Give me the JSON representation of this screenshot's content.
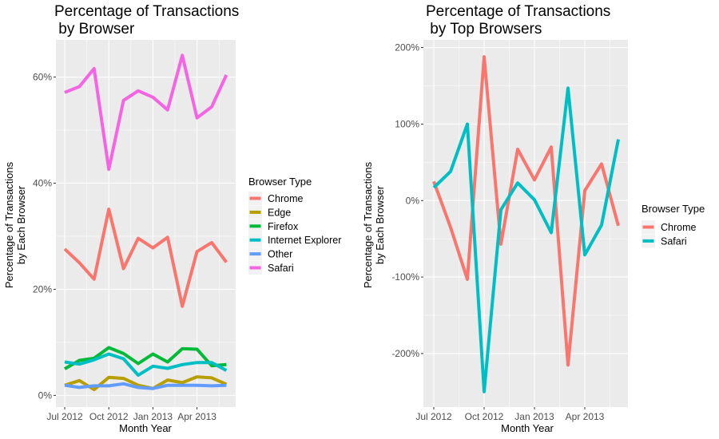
{
  "chart_data": [
    {
      "type": "line",
      "title_lines": [
        "Percentage of Transactions",
        " by Browser"
      ],
      "xlabel": "Month Year",
      "ylabel_lines": [
        "Percentage of Transactions",
        "by Each Browser"
      ],
      "x": [
        "2012-07",
        "2012-08",
        "2012-09",
        "2012-10",
        "2012-11",
        "2012-12",
        "2013-01",
        "2013-02",
        "2013-03",
        "2013-04",
        "2013-05",
        "2013-06"
      ],
      "x_ticks": [
        {
          "date": "2012-07",
          "label": "Jul 2012"
        },
        {
          "date": "2012-10",
          "label": "Oct 2012"
        },
        {
          "date": "2013-01",
          "label": "Jan 2013"
        },
        {
          "date": "2013-04",
          "label": "Apr 2013"
        }
      ],
      "y_ticks": [
        {
          "value": 0,
          "label": "0%"
        },
        {
          "value": 20,
          "label": "20%"
        },
        {
          "value": 40,
          "label": "40%"
        },
        {
          "value": 60,
          "label": "60%"
        }
      ],
      "ylim": [
        -2.2,
        67
      ],
      "grid": true,
      "legend": {
        "title": "Browser Type",
        "placement": "right"
      },
      "series": [
        {
          "name": "Chrome",
          "color": "#F8766D",
          "values": [
            27.6,
            25.0,
            21.9,
            35.1,
            23.9,
            29.6,
            27.8,
            29.8,
            16.8,
            27.1,
            28.8,
            25.1
          ]
        },
        {
          "name": "Edge",
          "color": "#B79F00",
          "values": [
            1.9,
            2.8,
            1.1,
            3.4,
            3.2,
            1.9,
            1.3,
            2.9,
            2.4,
            3.5,
            3.3,
            2.1
          ]
        },
        {
          "name": "Firefox",
          "color": "#00BA38",
          "values": [
            5.0,
            6.6,
            7.0,
            9.0,
            7.9,
            6.0,
            7.8,
            6.3,
            8.8,
            8.7,
            5.6,
            5.8
          ]
        },
        {
          "name": "Internet Explorer",
          "color": "#00BFC4",
          "values": [
            6.3,
            5.9,
            6.7,
            7.8,
            6.9,
            3.8,
            5.5,
            5.1,
            5.8,
            6.2,
            6.2,
            4.7
          ]
        },
        {
          "name": "Other",
          "color": "#619CFF",
          "values": [
            1.9,
            1.5,
            1.8,
            1.8,
            2.2,
            1.5,
            1.3,
            1.9,
            1.9,
            1.9,
            1.8,
            1.9
          ]
        },
        {
          "name": "Safari",
          "color": "#F564E3",
          "values": [
            57.1,
            58.2,
            61.6,
            42.6,
            55.6,
            57.4,
            56.2,
            53.8,
            64.1,
            52.3,
            54.4,
            60.4
          ]
        }
      ]
    },
    {
      "type": "line",
      "title_lines": [
        "Percentage of Transactions",
        " by Top Browsers"
      ],
      "xlabel": "Month Year",
      "ylabel_lines": [
        "Percentage of Transactions",
        "by Each Browser"
      ],
      "x": [
        "2012-07",
        "2012-08",
        "2012-09",
        "2012-10",
        "2012-11",
        "2012-12",
        "2013-01",
        "2013-02",
        "2013-03",
        "2013-04",
        "2013-05",
        "2013-06"
      ],
      "x_ticks": [
        {
          "date": "2012-07",
          "label": "Jul 2012"
        },
        {
          "date": "2012-10",
          "label": "Oct 2012"
        },
        {
          "date": "2013-01",
          "label": "Jan 2013"
        },
        {
          "date": "2013-04",
          "label": "Apr 2013"
        }
      ],
      "y_ticks": [
        {
          "value": -200,
          "label": "-200%"
        },
        {
          "value": -100,
          "label": "-100%"
        },
        {
          "value": 0,
          "label": "0%"
        },
        {
          "value": 100,
          "label": "100%"
        },
        {
          "value": 200,
          "label": "200%"
        }
      ],
      "ylim": [
        -270,
        210
      ],
      "grid": true,
      "legend": {
        "title": "Browser Type",
        "placement": "right"
      },
      "series": [
        {
          "name": "Chrome",
          "color": "#F8766D",
          "values": [
            25,
            -35,
            -103,
            188,
            -57,
            67,
            27,
            70,
            -215,
            13,
            48,
            -33
          ]
        },
        {
          "name": "Safari",
          "color": "#00BFC4",
          "values": [
            17,
            38,
            100,
            -250,
            -12,
            23,
            1,
            -42,
            147,
            -71,
            -32,
            80
          ]
        }
      ]
    }
  ]
}
